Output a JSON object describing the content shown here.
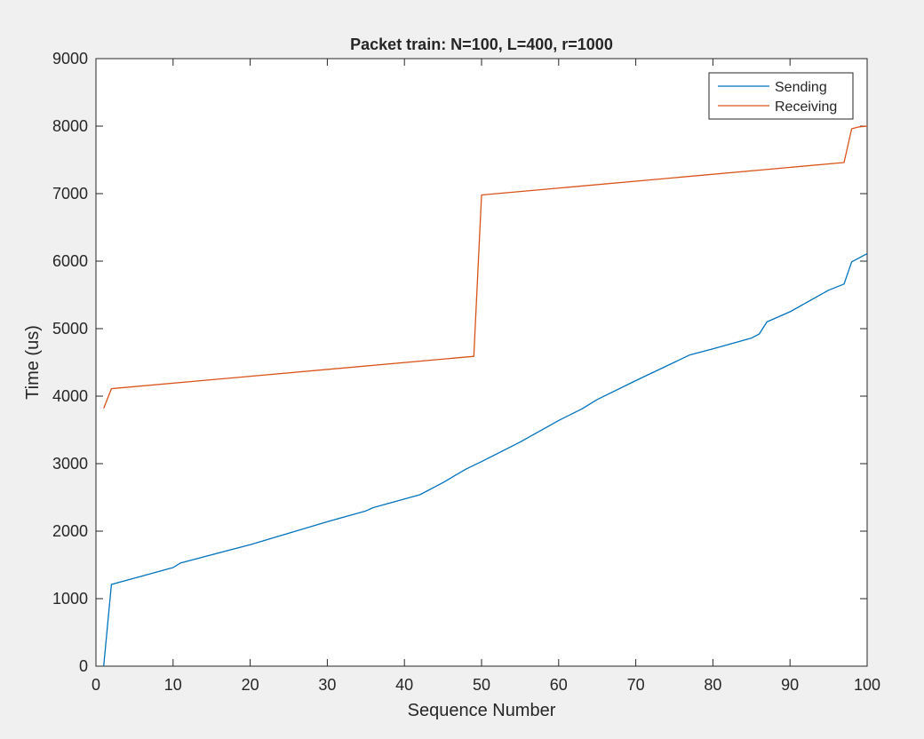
{
  "chart_data": {
    "type": "line",
    "title": "Packet train: N=100, L=400, r=1000",
    "xlabel": "Sequence Number",
    "ylabel": "Time (us)",
    "xlim": [
      0,
      100
    ],
    "ylim": [
      0,
      9000
    ],
    "xticks": [
      0,
      10,
      20,
      30,
      40,
      50,
      60,
      70,
      80,
      90,
      100
    ],
    "yticks": [
      0,
      1000,
      2000,
      3000,
      4000,
      5000,
      6000,
      7000,
      8000,
      9000
    ],
    "grid": false,
    "legend_position": "top-right",
    "series": [
      {
        "name": "Sending",
        "color": "#0072BD",
        "points": [
          [
            1,
            0
          ],
          [
            2,
            1210
          ],
          [
            10,
            1460
          ],
          [
            11,
            1530
          ],
          [
            20,
            1800
          ],
          [
            30,
            2140
          ],
          [
            35,
            2300
          ],
          [
            36,
            2350
          ],
          [
            42,
            2540
          ],
          [
            45,
            2720
          ],
          [
            48,
            2920
          ],
          [
            50,
            3030
          ],
          [
            55,
            3320
          ],
          [
            60,
            3640
          ],
          [
            63,
            3810
          ],
          [
            65,
            3950
          ],
          [
            70,
            4230
          ],
          [
            77,
            4610
          ],
          [
            80,
            4700
          ],
          [
            85,
            4860
          ],
          [
            86,
            4920
          ],
          [
            87,
            5100
          ],
          [
            90,
            5250
          ],
          [
            95,
            5570
          ],
          [
            97,
            5660
          ],
          [
            98,
            5990
          ],
          [
            100,
            6110
          ]
        ]
      },
      {
        "name": "Receiving",
        "color": "#D95319",
        "points": [
          [
            1,
            3820
          ],
          [
            2,
            4110
          ],
          [
            49,
            4590
          ],
          [
            50,
            6980
          ],
          [
            97,
            7460
          ],
          [
            98,
            7960
          ],
          [
            99,
            7990
          ],
          [
            100,
            8000
          ]
        ]
      }
    ]
  }
}
